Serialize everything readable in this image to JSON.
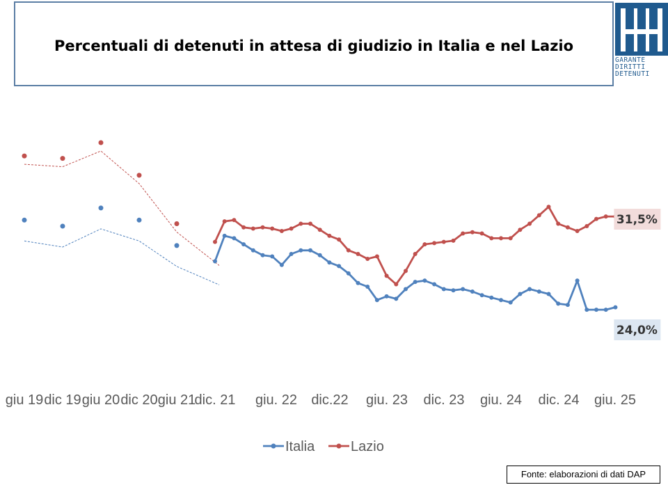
{
  "title": "Percentuali di detenuti in attesa di giudizio in Italia e nel Lazio",
  "logo": {
    "lines": [
      "GARANTE",
      "DIRITTI",
      "DETENUTI"
    ],
    "color": "#1f5a8e"
  },
  "source": "Fonte: elaborazioni di dati DAP",
  "chart_data": {
    "type": "line",
    "title": "Percentuali di detenuti in attesa di giudizio in Italia e nel Lazio",
    "x_tick_labels": [
      "giu 19",
      "dic 19",
      "giu 20",
      "dic 20",
      "giu 21",
      "dic. 21",
      "giu. 22",
      "dic.22",
      "giu. 23",
      "dic. 23",
      "giu. 24",
      "dic. 24",
      "giu. 25"
    ],
    "early_points": {
      "x": [
        "giu 19",
        "dic 19",
        "giu 20",
        "dic 20",
        "giu 21"
      ],
      "Italia": [
        31.2,
        30.7,
        32.2,
        31.2,
        29.1
      ],
      "Lazio": [
        36.5,
        36.3,
        37.6,
        34.9,
        30.9
      ],
      "style": "markers with dashed trend line"
    },
    "monthly_months": [
      "dic 21",
      "gen 22",
      "feb 22",
      "mar 22",
      "apr 22",
      "mag 22",
      "giu 22",
      "lug 22",
      "ago 22",
      "set 22",
      "ott 22",
      "nov 22",
      "dic 22",
      "gen 23",
      "feb 23",
      "mar 23",
      "apr 23",
      "mag 23",
      "giu 23",
      "lug 23",
      "ago 23",
      "set 23",
      "ott 23",
      "nov 23",
      "dic 23",
      "gen 24",
      "feb 24",
      "mar 24",
      "apr 24",
      "mag 24",
      "giu 24",
      "lug 24",
      "ago 24",
      "set 24",
      "ott 24",
      "nov 24",
      "dic 24",
      "gen 25",
      "feb 25",
      "mar 25",
      "apr 25",
      "mag 25",
      "giu 25"
    ],
    "series": [
      {
        "name": "Italia",
        "color": "#4f81bd",
        "values": [
          27.8,
          29.9,
          29.7,
          29.2,
          28.7,
          28.3,
          28.2,
          27.5,
          28.4,
          28.7,
          28.7,
          28.3,
          27.7,
          27.4,
          26.8,
          26.0,
          25.7,
          24.6,
          24.9,
          24.7,
          25.5,
          26.1,
          26.2,
          25.9,
          25.5,
          25.4,
          25.5,
          25.3,
          25.0,
          24.8,
          24.6,
          24.4,
          25.1,
          25.5,
          25.3,
          25.1,
          24.3,
          24.2,
          26.2,
          23.8,
          23.8,
          23.8,
          24.0
        ]
      },
      {
        "name": "Lazio",
        "color": "#c0504d",
        "values": [
          29.4,
          31.1,
          31.2,
          30.6,
          30.5,
          30.6,
          30.5,
          30.3,
          30.5,
          30.9,
          30.9,
          30.4,
          29.9,
          29.6,
          28.7,
          28.4,
          28.0,
          28.2,
          26.6,
          25.9,
          27.0,
          28.4,
          29.2,
          29.3,
          29.4,
          29.5,
          30.1,
          30.2,
          30.1,
          29.7,
          29.7,
          29.7,
          30.4,
          30.9,
          31.6,
          32.3,
          30.9,
          30.6,
          30.3,
          30.7,
          31.3,
          31.5,
          31.5
        ]
      }
    ],
    "end_labels": {
      "Italia": "24,0%",
      "Lazio": "31,5%"
    },
    "end_label_colors": {
      "Italia": "#dce6f1",
      "Lazio": "#f2dcdb"
    },
    "legend": {
      "position": "bottom",
      "entries": [
        "Italia",
        "Lazio"
      ]
    },
    "grid": false,
    "ylim": [
      20,
      40
    ]
  }
}
